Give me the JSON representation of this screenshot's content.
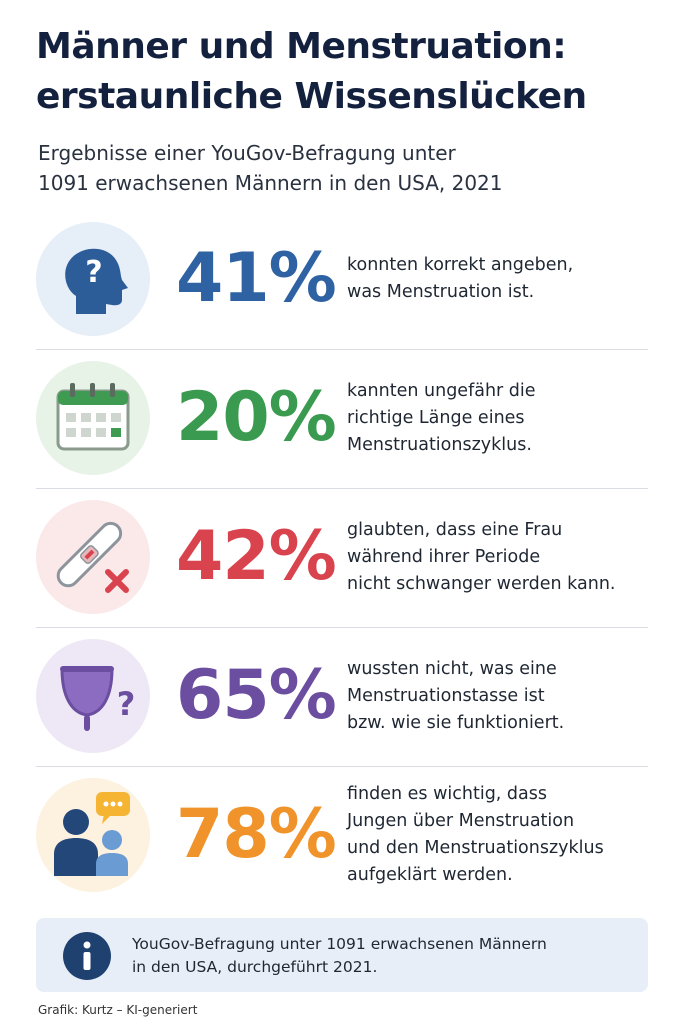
{
  "header": {
    "title": [
      "Männer und Menstruation:",
      "erstaunliche Wissenslücken"
    ],
    "subtitle": [
      "Ergebnisse einer YouGov-Befragung unter",
      "1091 erwachsenen Männern in den USA, 2021"
    ]
  },
  "items": [
    {
      "percent": "41%",
      "text": [
        "konnten korrekt angeben,",
        "was Menstruation ist."
      ]
    },
    {
      "percent": "20%",
      "text": [
        "kannten ungefähr die",
        "richtige Länge eines",
        "Menstruationszyklus."
      ]
    },
    {
      "percent": "42%",
      "text": [
        "glaubten, dass eine Frau",
        "während ihrer Periode",
        "nicht schwanger werden kann."
      ]
    },
    {
      "percent": "65%",
      "text": [
        "wussten nicht, was eine",
        "Menstruationstasse ist",
        "bzw. wie sie funktioniert."
      ]
    },
    {
      "percent": "78%",
      "text": [
        "finden es wichtig, dass",
        "Jungen über Menstruation",
        "und den Menstruationszyklus",
        "aufgeklärt werden."
      ]
    }
  ],
  "note": [
    "YouGov-Befragung unter 1091 erwachsenen Männern",
    "in den USA, durchgeführt 2021."
  ],
  "footer": "Grafik: Kurtz – KI-generiert"
}
